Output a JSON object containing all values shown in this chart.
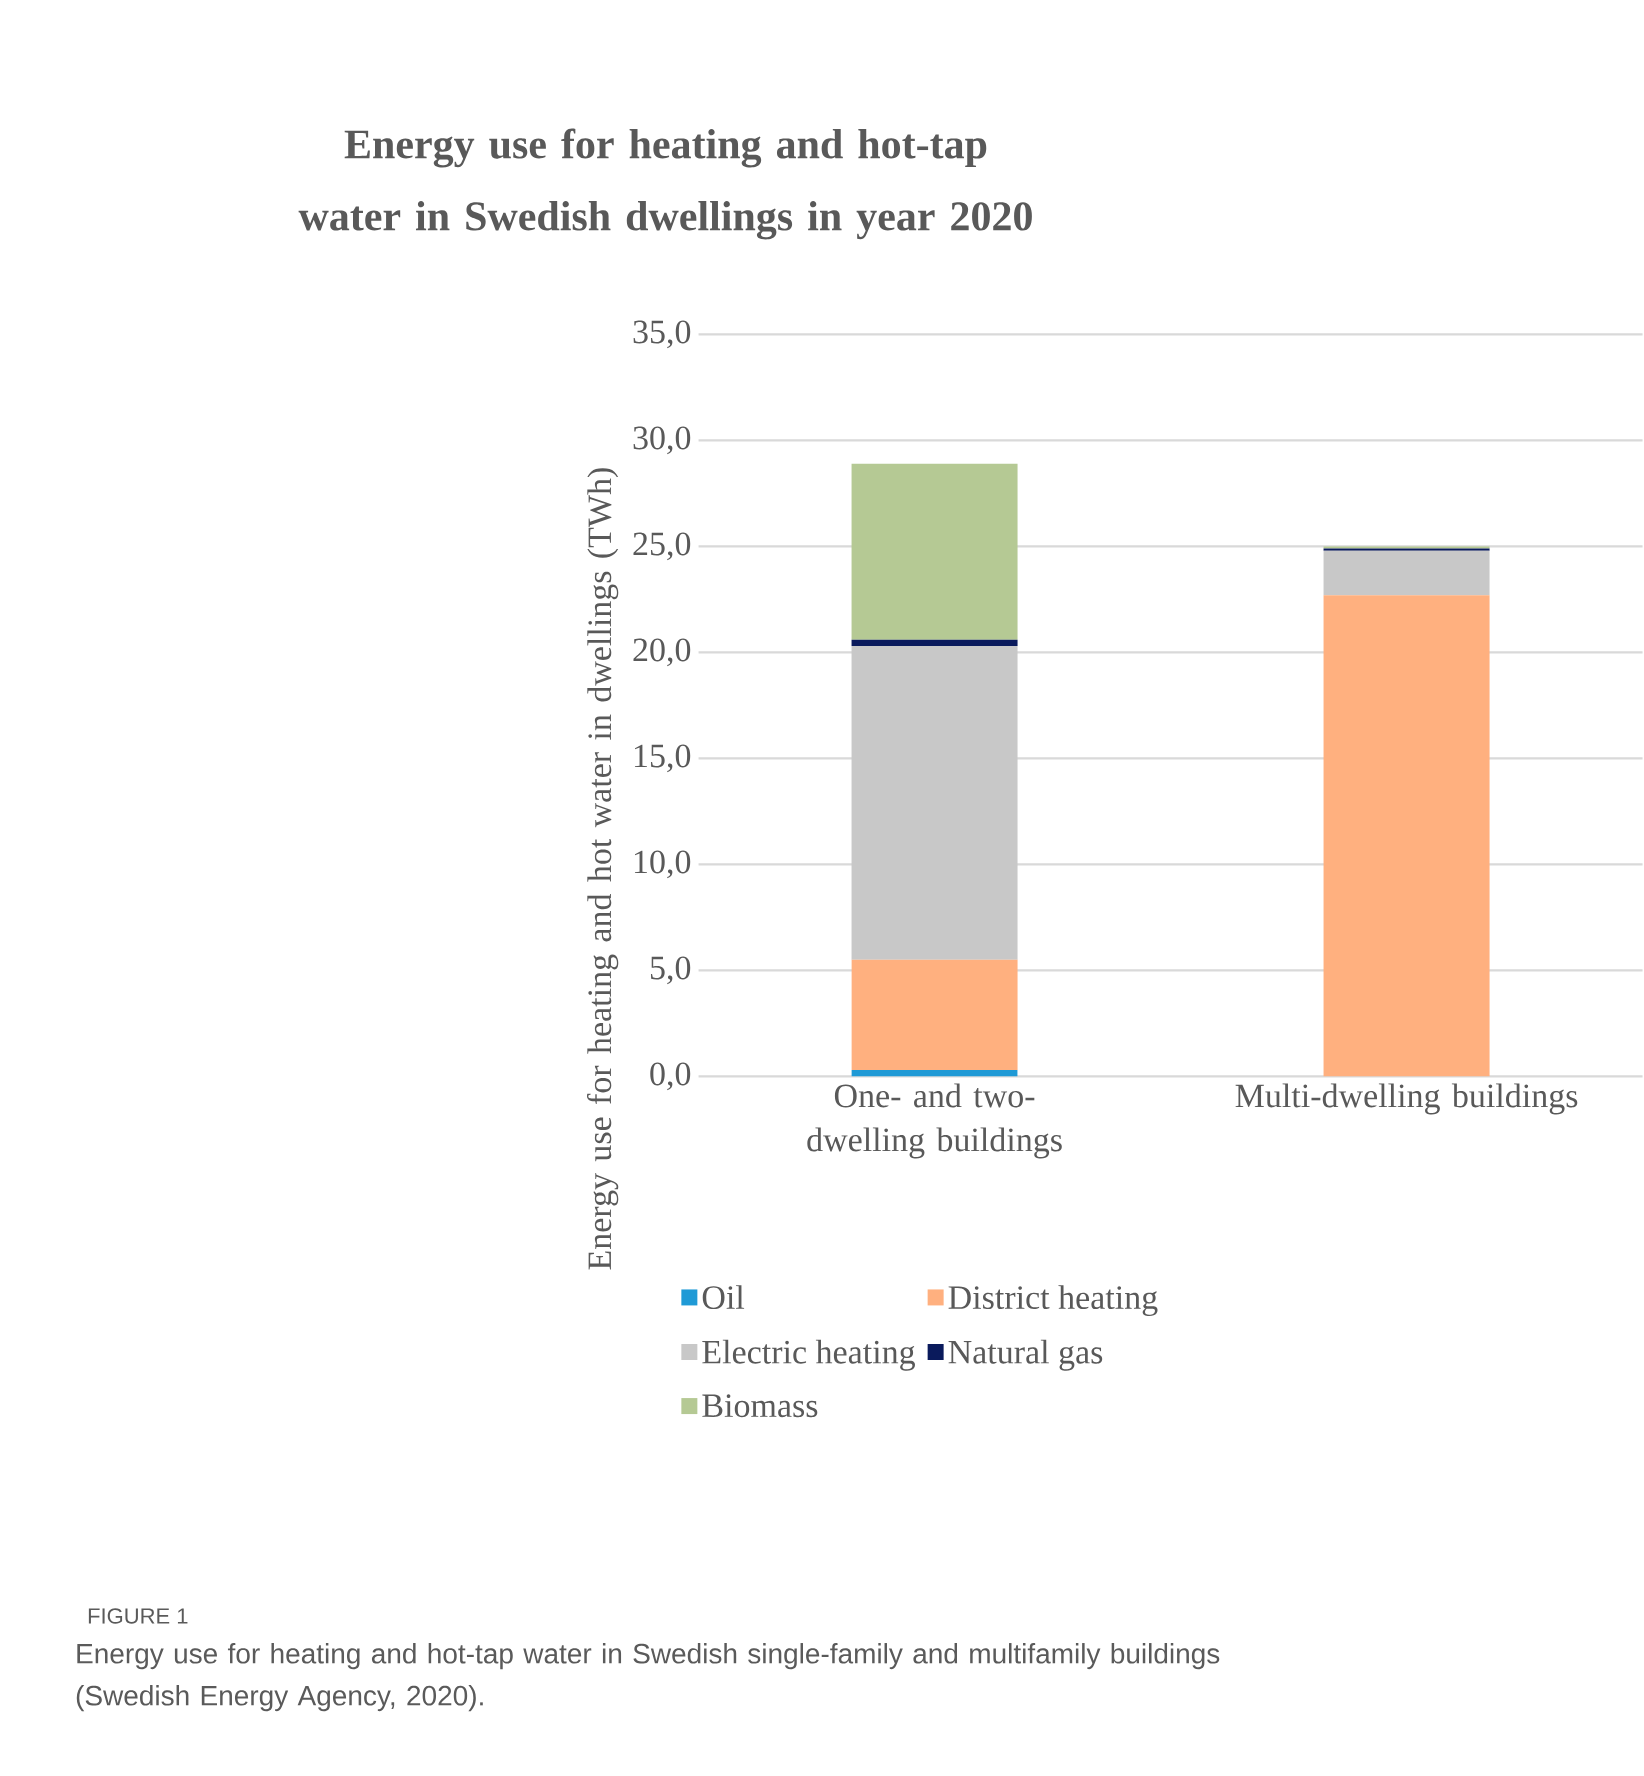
{
  "chart_data": {
    "type": "bar",
    "stacked": true,
    "title": "Energy use for heating and hot-tap water in Swedish dwellings in year 2020",
    "ylabel": "Energy use for heating and hot water in dwellings (TWh)",
    "categories": [
      "One- and two-dwelling buildings",
      "Multi-dwelling buildings"
    ],
    "series": [
      {
        "name": "Oil",
        "color": "#1f9ad6",
        "values": [
          0.3,
          0
        ]
      },
      {
        "name": "District heating",
        "color": "#ffb07f",
        "values": [
          5.2,
          22.7
        ]
      },
      {
        "name": "Electric heating",
        "color": "#c8c8c8",
        "values": [
          14.8,
          2.1
        ]
      },
      {
        "name": "Natural gas",
        "color": "#0a1a5c",
        "values": [
          0.3,
          0.1
        ]
      },
      {
        "name": "Biomass",
        "color": "#b5c994",
        "values": [
          8.3,
          0.1
        ]
      }
    ],
    "ylim": [
      0,
      35
    ],
    "yticks": [
      {
        "value": 0,
        "label": "0,0"
      },
      {
        "value": 5,
        "label": "5,0"
      },
      {
        "value": 10,
        "label": "10,0"
      },
      {
        "value": 15,
        "label": "15,0"
      },
      {
        "value": 20,
        "label": "20,0"
      },
      {
        "value": 25,
        "label": "25,0"
      },
      {
        "value": 30,
        "label": "30,0"
      },
      {
        "value": 35,
        "label": "35,0"
      }
    ],
    "grid": "y",
    "legend": "bottom",
    "annotations": [
      "FIGURE 1",
      "Energy use for heating and hot-tap water in Swedish single-family and multifamily buildings (Swedish Energy Agency, 2020)."
    ]
  }
}
